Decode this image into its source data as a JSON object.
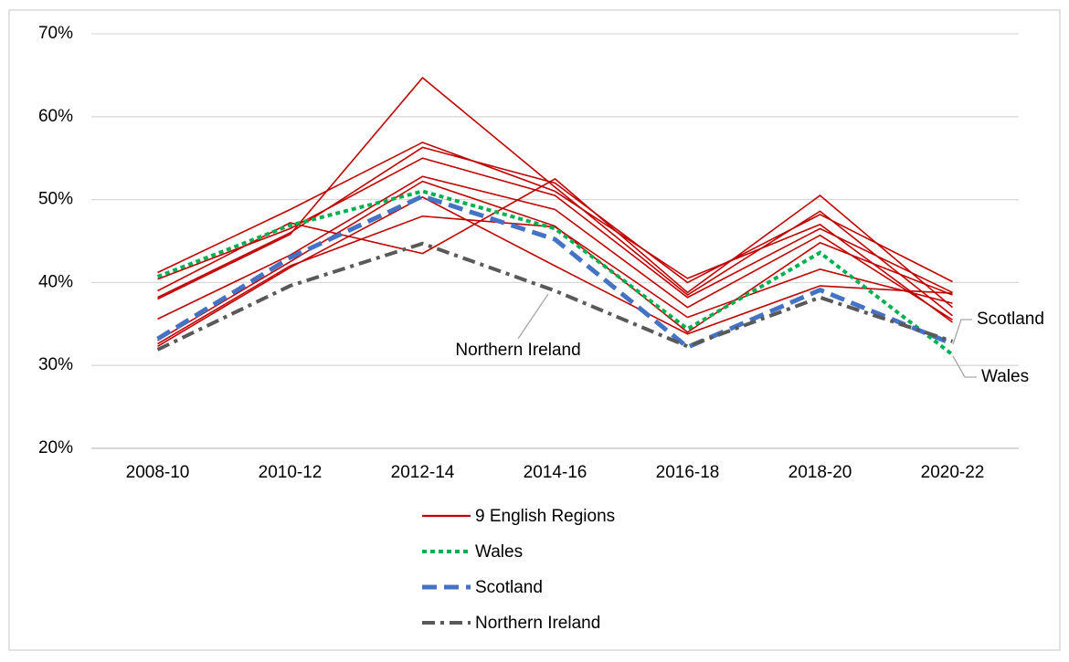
{
  "chart_data": {
    "type": "line",
    "categories": [
      "2008-10",
      "2010-12",
      "2012-14",
      "2014-16",
      "2016-18",
      "2018-20",
      "2020-22"
    ],
    "ylim": [
      20,
      70
    ],
    "yticks": [
      {
        "value": 20,
        "label": "20%"
      },
      {
        "value": 30,
        "label": "30%"
      },
      {
        "value": 40,
        "label": "40%"
      },
      {
        "value": 50,
        "label": "50%"
      },
      {
        "value": 60,
        "label": "60%"
      },
      {
        "value": 70,
        "label": "70%"
      }
    ],
    "grid": true,
    "legend": "bottom",
    "series": [
      {
        "name": "9 English Regions",
        "color": "#c00000",
        "dash": "solid",
        "lines": [
          [
            38.0,
            45.8,
            64.7,
            51.5,
            38.5,
            48.6,
            36.0
          ],
          [
            41.2,
            48.8,
            56.9,
            51.0,
            40.5,
            47.0,
            35.2
          ],
          [
            39.0,
            47.2,
            43.5,
            52.5,
            38.8,
            50.5,
            37.0
          ],
          [
            38.2,
            46.0,
            56.3,
            52.0,
            40.0,
            48.2,
            40.1
          ],
          [
            40.4,
            46.5,
            55.0,
            50.5,
            38.2,
            46.5,
            38.8
          ],
          [
            35.6,
            43.3,
            52.8,
            48.8,
            37.0,
            45.7,
            35.5
          ],
          [
            33.0,
            42.5,
            52.2,
            46.8,
            34.0,
            44.8,
            38.5
          ],
          [
            32.6,
            42.0,
            48.0,
            46.7,
            35.8,
            41.6,
            37.5
          ],
          [
            32.3,
            41.8,
            50.3,
            42.0,
            33.8,
            39.6,
            38.7
          ]
        ]
      },
      {
        "name": "Wales",
        "color": "#00b050",
        "dash": "dotted",
        "values": [
          40.7,
          46.9,
          51.0,
          46.5,
          34.4,
          43.6,
          31.3
        ]
      },
      {
        "name": "Scotland",
        "color": "#4472c4",
        "dash": "dashed",
        "values": [
          33.2,
          43.0,
          50.4,
          45.2,
          32.2,
          39.1,
          32.6
        ]
      },
      {
        "name": "Northern Ireland",
        "color": "#595959",
        "dash": "dashdot",
        "values": [
          31.9,
          39.6,
          44.7,
          39.0,
          32.3,
          38.2,
          32.9
        ]
      }
    ],
    "annotations": [
      {
        "text": "Northern Ireland",
        "series": 3
      },
      {
        "text": "Scotland",
        "series": 2
      },
      {
        "text": "Wales",
        "series": 1
      }
    ]
  }
}
